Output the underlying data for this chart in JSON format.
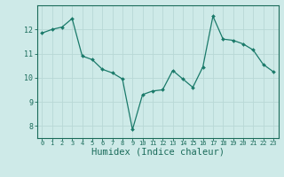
{
  "x": [
    0,
    1,
    2,
    3,
    4,
    5,
    6,
    7,
    8,
    9,
    10,
    11,
    12,
    13,
    14,
    15,
    16,
    17,
    18,
    19,
    20,
    21,
    22,
    23
  ],
  "y": [
    11.85,
    12.0,
    12.1,
    12.45,
    10.9,
    10.75,
    10.35,
    10.2,
    9.95,
    7.85,
    9.3,
    9.45,
    9.5,
    10.3,
    9.95,
    9.6,
    10.45,
    12.55,
    11.6,
    11.55,
    11.4,
    11.15,
    10.55,
    10.25
  ],
  "line_color": "#1a7a6a",
  "marker": "D",
  "marker_size": 2.0,
  "bg_color": "#ceeae8",
  "grid_color": "#b8d8d5",
  "tick_color": "#1a6b5a",
  "axis_color": "#1a6b5a",
  "xlabel": "Humidex (Indice chaleur)",
  "xlabel_fontsize": 7.5,
  "ylim": [
    7.5,
    13.0
  ],
  "yticks": [
    8,
    9,
    10,
    11,
    12
  ],
  "xlim": [
    -0.5,
    23.5
  ],
  "xticks": [
    0,
    1,
    2,
    3,
    4,
    5,
    6,
    7,
    8,
    9,
    10,
    11,
    12,
    13,
    14,
    15,
    16,
    17,
    18,
    19,
    20,
    21,
    22,
    23
  ]
}
